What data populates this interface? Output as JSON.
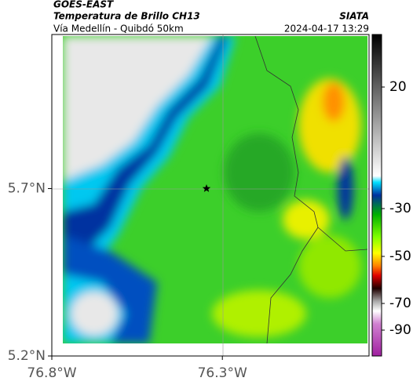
{
  "header": {
    "source": "GOES-EAST",
    "title": "Temperatura de Brillo CH13",
    "agency": "SIATA",
    "subtitle": "Vía Medellín - Quibdó 50km",
    "timestamp": "2024-04-17 13:29"
  },
  "map": {
    "xlim": [
      -76.8,
      -75.87
    ],
    "ylim": [
      5.2,
      6.16
    ],
    "xticks": [
      {
        "value": -76.8,
        "label": "76.8°W"
      },
      {
        "value": -76.3,
        "label": "76.3°W"
      }
    ],
    "yticks": [
      {
        "value": 5.2,
        "label": "5.2°N"
      },
      {
        "value": 5.7,
        "label": "5.7°N"
      }
    ]
  },
  "colorbar": {
    "ticks": [
      20,
      -30,
      -50,
      -70,
      -90
    ]
  }
}
